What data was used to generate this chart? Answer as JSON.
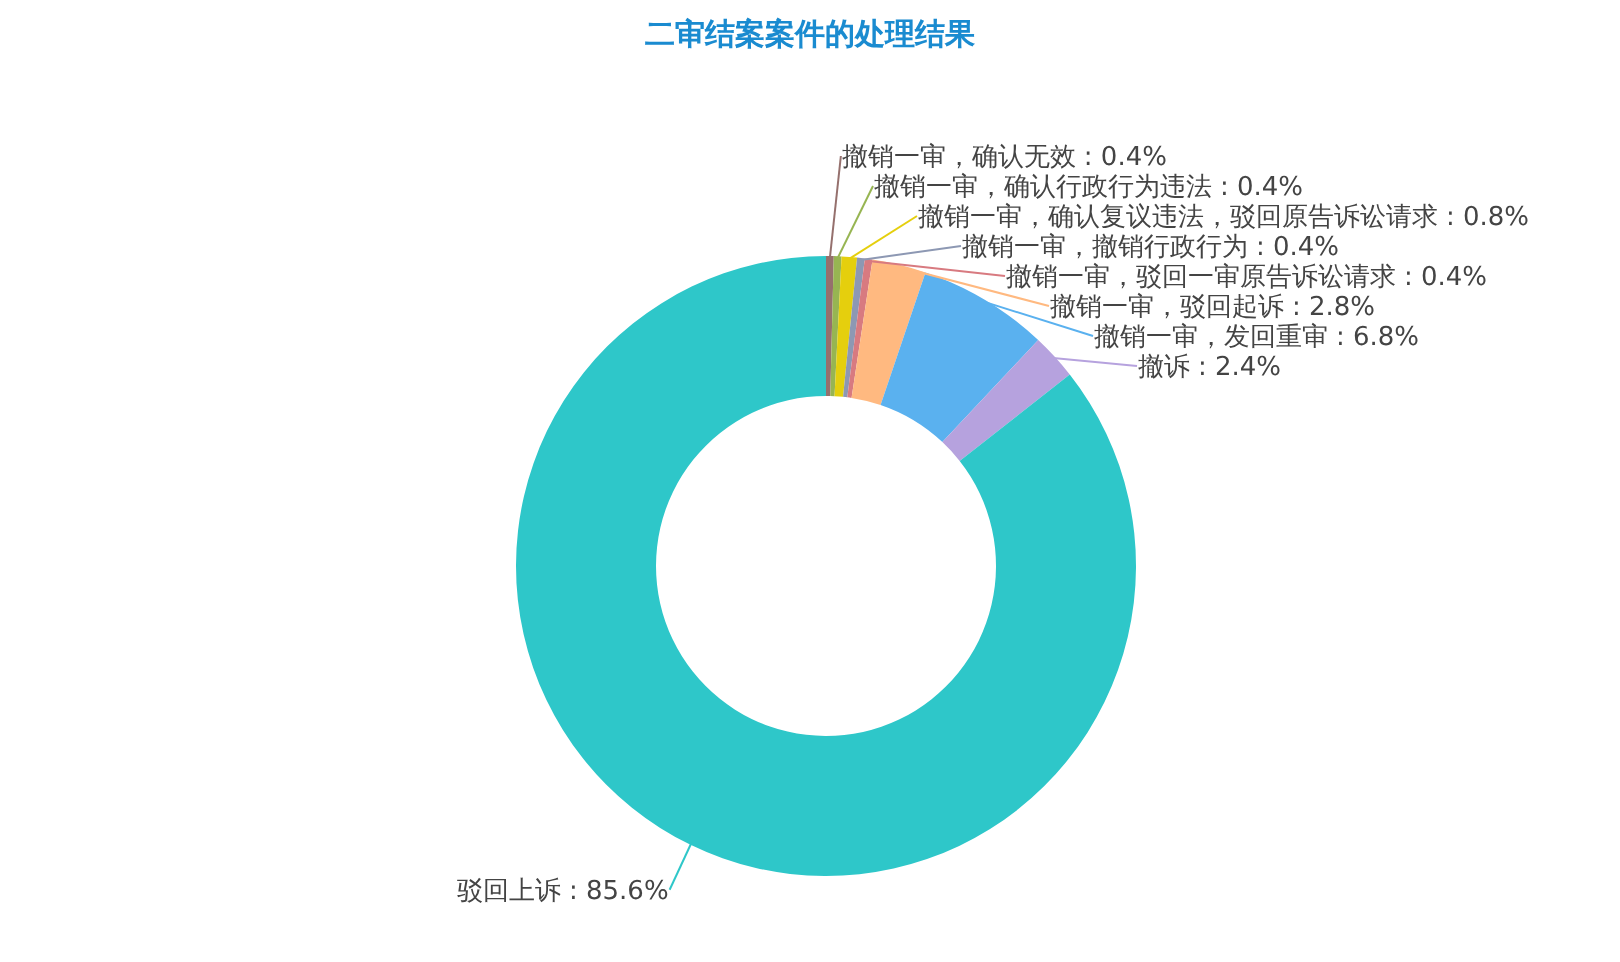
{
  "chart_data": {
    "type": "donut",
    "title": "二审结案案件的处理结果",
    "categories": [
      "撤销一审，确认无效",
      "撤销一审，确认行政行为违法",
      "撤销一审，确认复议违法，驳回原告诉讼请求",
      "撤销一审，撤销行政行为",
      "撤销一审，驳回一审原告诉讼请求",
      "撤销一审，驳回起诉",
      "撤销一审，发回重审",
      "撤诉",
      "驳回上诉"
    ],
    "values": [
      0.4,
      0.4,
      0.8,
      0.4,
      0.4,
      2.8,
      6.8,
      2.4,
      85.6
    ],
    "colors": [
      "#95706d",
      "#97b552",
      "#e5cf0d",
      "#8d98b3",
      "#d87a80",
      "#ffb980",
      "#5ab1ef",
      "#b6a2de",
      "#2ec7c9"
    ],
    "value_labels": [
      ": 0.4%",
      ": 0.4%",
      ": 0.8%",
      ": 0.4%",
      ": 0.4%",
      ": 2.8%",
      ": 6.8%",
      ": 2.4%",
      ": 85.6%"
    ]
  }
}
